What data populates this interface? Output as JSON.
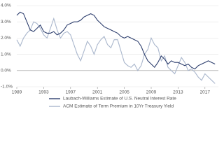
{
  "chart_data": {
    "type": "line",
    "x": [
      1989,
      1989.5,
      1990,
      1990.5,
      1991,
      1991.5,
      1992,
      1992.5,
      1993,
      1993.5,
      1994,
      1994.5,
      1995,
      1995.5,
      1996,
      1996.5,
      1997,
      1997.5,
      1998,
      1998.5,
      1999,
      1999.5,
      2000,
      2000.5,
      2001,
      2001.5,
      2002,
      2002.5,
      2003,
      2003.5,
      2004,
      2004.5,
      2005,
      2005.5,
      2006,
      2006.5,
      2007,
      2007.5,
      2008,
      2008.5,
      2009,
      2009.5,
      2010,
      2010.5,
      2011,
      2011.5,
      2012,
      2012.5,
      2013,
      2013.5,
      2014,
      2014.5,
      2015,
      2015.5,
      2016,
      2016.5,
      2017,
      2017.5,
      2018,
      2018.5
    ],
    "series": [
      {
        "name": "Laubach-Williams Estimate of U.S. Neutral Interest Rate",
        "color": "#2e3f6e",
        "values": [
          3.4,
          3.6,
          3.5,
          3.0,
          2.5,
          2.4,
          2.6,
          2.8,
          2.4,
          2.3,
          2.3,
          2.4,
          2.2,
          2.3,
          2.5,
          2.8,
          2.9,
          3.0,
          3.0,
          3.1,
          3.3,
          3.4,
          3.5,
          3.4,
          3.1,
          2.9,
          2.7,
          2.6,
          2.5,
          2.4,
          2.3,
          2.1,
          2.0,
          2.1,
          2.0,
          1.9,
          1.8,
          1.5,
          1.0,
          0.6,
          0.4,
          0.2,
          0.5,
          0.9,
          0.7,
          0.4,
          0.6,
          0.5,
          0.5,
          0.4,
          0.3,
          0.4,
          0.2,
          0.1,
          0.3,
          0.4,
          0.5,
          0.6,
          0.5,
          0.4
        ]
      },
      {
        "name": "ACM Estimate of Term Premium in 10Yr Treasury Yield",
        "color": "#a9b6cc",
        "values": [
          1.9,
          1.5,
          2.0,
          2.3,
          2.5,
          3.0,
          2.9,
          2.6,
          2.2,
          2.0,
          2.6,
          3.2,
          2.5,
          2.0,
          2.3,
          2.4,
          2.2,
          1.6,
          1.0,
          0.6,
          1.2,
          1.8,
          1.5,
          1.0,
          1.6,
          1.9,
          2.1,
          1.6,
          1.4,
          1.9,
          1.9,
          1.2,
          0.5,
          0.3,
          0.2,
          0.4,
          0.0,
          0.3,
          1.0,
          1.3,
          2.0,
          1.6,
          1.4,
          0.6,
          0.9,
          0.2,
          0.0,
          -0.2,
          0.3,
          0.8,
          0.5,
          0.0,
          0.1,
          -0.1,
          -0.4,
          -0.6,
          -0.2,
          -0.4,
          -0.6,
          -0.8
        ]
      }
    ],
    "xlim": [
      1989,
      2019
    ],
    "xticks": [
      1989,
      1993,
      1997,
      2001,
      2005,
      2009,
      2013,
      2017
    ],
    "ylim": [
      -1,
      4
    ],
    "yticks": [
      {
        "value": 4,
        "label": "4.0%"
      },
      {
        "value": 3,
        "label": "3.0%"
      },
      {
        "value": 2,
        "label": "2.0%"
      },
      {
        "value": 1,
        "label": "1.0%"
      },
      {
        "value": 0,
        "label": "0.0%"
      },
      {
        "value": -1,
        "label": "-1.0%"
      }
    ],
    "grid": true
  }
}
